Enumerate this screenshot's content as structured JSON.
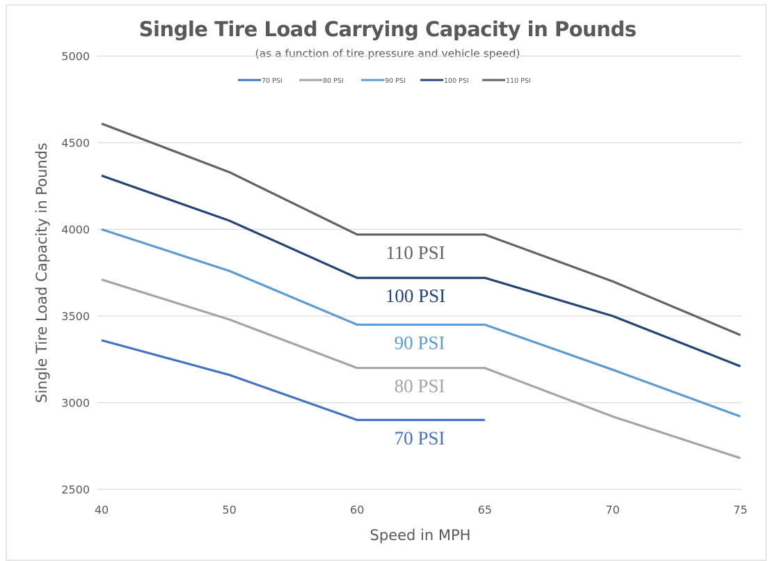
{
  "chart_data": {
    "type": "line",
    "title": "Single Tire Load Carrying Capacity in Pounds",
    "subtitle": "(as a function of tire pressure and vehicle speed)",
    "xlabel": "Speed in MPH",
    "ylabel": "Single Tire Load Capacity in Pounds",
    "x_axis_type": "category",
    "categories": [
      "40",
      "50",
      "60",
      "65",
      "70",
      "75"
    ],
    "ylim": [
      2500,
      5000
    ],
    "yticks": [
      2500,
      3000,
      3500,
      4000,
      4500,
      5000
    ],
    "grid": "horizontal",
    "legend_position": "top-center",
    "series": [
      {
        "name": "70 PSI",
        "color": "#4472C4",
        "values": [
          3360,
          3160,
          2900,
          2900,
          null,
          null
        ],
        "label": "70 PSI"
      },
      {
        "name": "80 PSI",
        "color": "#A5A5A5",
        "values": [
          3710,
          3480,
          3200,
          3200,
          2920,
          2680
        ],
        "label": "80 PSI"
      },
      {
        "name": "90 PSI",
        "color": "#5B9BD5",
        "values": [
          4000,
          3760,
          3450,
          3450,
          3190,
          2920
        ],
        "label": "90 PSI"
      },
      {
        "name": "100 PSI",
        "color": "#264478",
        "values": [
          4310,
          4050,
          3720,
          3720,
          3500,
          3210
        ],
        "label": "100 PSI"
      },
      {
        "name": "110 PSI",
        "color": "#636363",
        "values": [
          4610,
          4330,
          3970,
          3970,
          3700,
          3390
        ],
        "label": "110 PSI"
      }
    ],
    "annotations": [
      {
        "text": "110 PSI",
        "series": "110 PSI",
        "color": "#636363"
      },
      {
        "text": "100 PSI",
        "series": "100 PSI",
        "color": "#264478"
      },
      {
        "text": "90 PSI",
        "series": "90 PSI",
        "color": "#5B9BD5"
      },
      {
        "text": "80 PSI",
        "series": "80 PSI",
        "color": "#A5A5A5"
      },
      {
        "text": "70 PSI",
        "series": "70 PSI",
        "color": "#4472C4"
      }
    ]
  }
}
